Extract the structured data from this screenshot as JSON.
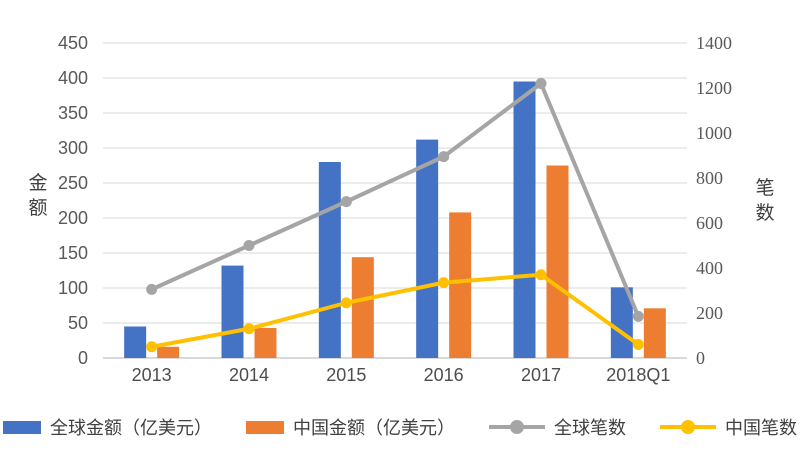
{
  "chart_data": {
    "type": "combo",
    "title": "",
    "categories": [
      "2013",
      "2014",
      "2015",
      "2016",
      "2017",
      "2018Q1"
    ],
    "series": [
      {
        "name": "全球金额（亿美元）",
        "type": "bar",
        "axis": "left",
        "color": "#4472C4",
        "values": [
          45,
          132,
          280,
          312,
          395,
          101
        ]
      },
      {
        "name": "中国金额（亿美元）",
        "type": "bar",
        "axis": "left",
        "color": "#ED7D31",
        "values": [
          16,
          43,
          144,
          208,
          275,
          71
        ]
      },
      {
        "name": "全球笔数",
        "type": "line",
        "axis": "right",
        "color": "#A5A5A5",
        "values": [
          305,
          500,
          695,
          895,
          1220,
          185
        ]
      },
      {
        "name": "中国笔数",
        "type": "line",
        "axis": "right",
        "color": "#FFC000",
        "values": [
          50,
          130,
          245,
          335,
          370,
          60
        ]
      }
    ],
    "left_axis": {
      "label": "金额",
      "min": 0,
      "max": 450,
      "step": 50,
      "ticks": [
        0,
        50,
        100,
        150,
        200,
        250,
        300,
        350,
        400,
        450
      ]
    },
    "right_axis": {
      "label": "笔数",
      "min": 0,
      "max": 1400,
      "step": 200,
      "ticks": [
        0,
        200,
        400,
        600,
        800,
        1000,
        1200,
        1400
      ]
    },
    "grid": true,
    "legend_position": "bottom",
    "colors": {
      "gridline": "#d9d9d9",
      "baseline": "#b3b3b3",
      "tick_text": "#595959"
    }
  }
}
